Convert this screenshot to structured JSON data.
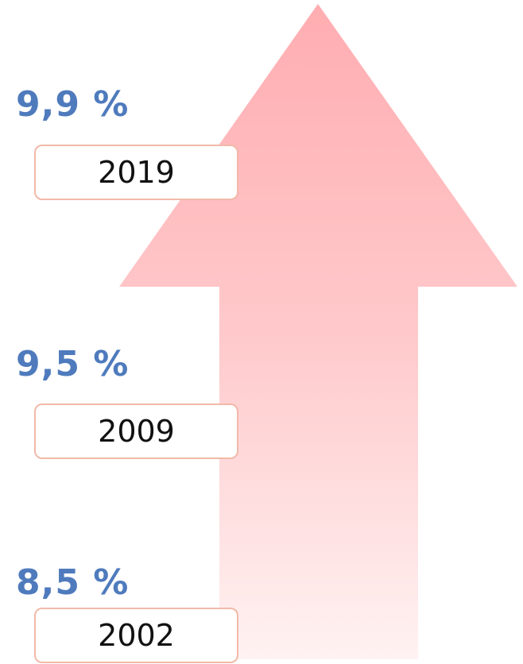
{
  "items": [
    {
      "value": "9,9 %",
      "year": "2019"
    },
    {
      "value": "9,5 %",
      "year": "2009"
    },
    {
      "value": "8,5 %",
      "year": "2002"
    }
  ]
}
